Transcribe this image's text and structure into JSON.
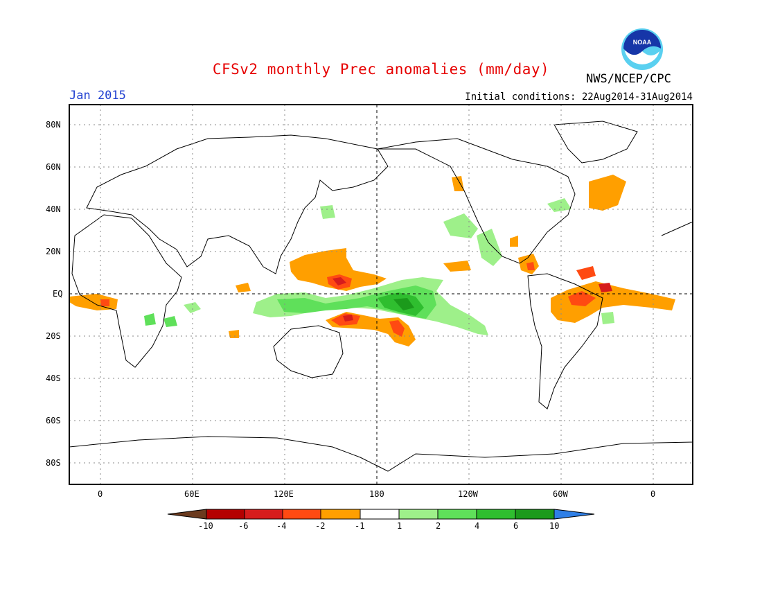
{
  "header": {
    "title": "CFSv2 monthly Prec anomalies (mm/day)",
    "month": "Jan 2015",
    "initial_conditions": "Initial conditions: 22Aug2014-31Aug2014",
    "agency": "NWS/NCEP/CPC",
    "logo_text": "NOAA"
  },
  "axes": {
    "lat_labels": [
      "80N",
      "60N",
      "40N",
      "20N",
      "EQ",
      "20S",
      "40S",
      "60S",
      "80S"
    ],
    "lon_labels": [
      "0",
      "60E",
      "120E",
      "180",
      "120W",
      "60W",
      "0"
    ]
  },
  "legend": {
    "labels": [
      "-10",
      "-6",
      "-4",
      "-2",
      "-1",
      "1",
      "2",
      "4",
      "6",
      "10"
    ],
    "colors": [
      "#6b3a1e",
      "#b40000",
      "#d61c1c",
      "#ff4a12",
      "#ff9f00",
      "#ffffff",
      "#9ef08a",
      "#5fe05a",
      "#2fbe2f",
      "#1b9a1b",
      "#2f7fe6"
    ]
  },
  "colors": {
    "title": "#e60000",
    "month": "#1f3fd0",
    "dry_light": "#ff9f00",
    "dry_mid": "#ff4a12",
    "dry_strong": "#d61c1c",
    "wet_light": "#9ef08a",
    "wet_mid": "#5fe05a",
    "wet_strong": "#2fbe2f"
  }
}
